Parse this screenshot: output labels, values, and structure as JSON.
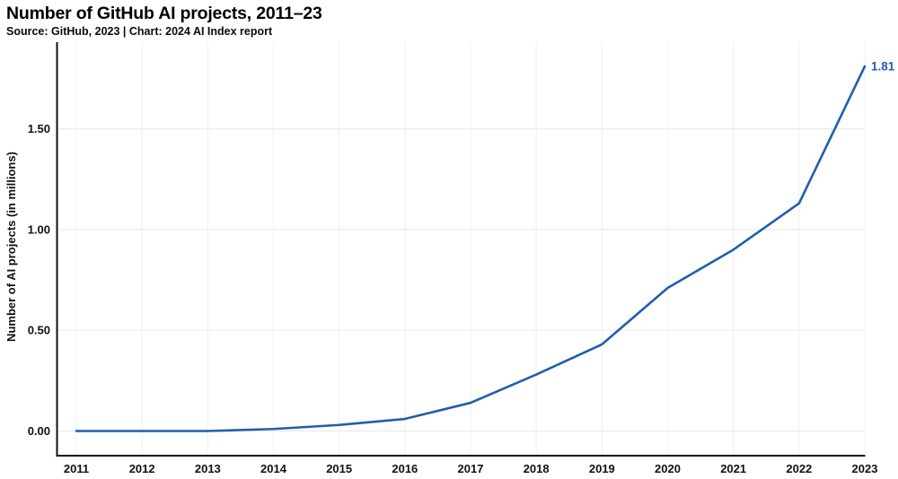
{
  "header": {
    "title": "Number of GitHub AI projects, 2011–23",
    "subtitle": "Source: GitHub, 2023 | Chart: 2024 AI Index report"
  },
  "chart_data": {
    "type": "line",
    "title": "Number of GitHub AI projects, 2011–23",
    "subtitle": "Source: GitHub, 2023 | Chart: 2024 AI Index report",
    "xlabel": "",
    "ylabel": "Number of AI projects (in millions)",
    "categories": [
      2011,
      2012,
      2013,
      2014,
      2015,
      2016,
      2017,
      2018,
      2019,
      2020,
      2021,
      2022,
      2023
    ],
    "series": [
      {
        "name": "Number of AI projects (in millions)",
        "values": [
          0.0,
          0.0,
          0.0,
          0.01,
          0.03,
          0.06,
          0.14,
          0.28,
          0.43,
          0.71,
          0.9,
          1.13,
          1.81
        ]
      }
    ],
    "end_label": "1.81",
    "yticks": {
      "values": [
        0.0,
        0.5,
        1.0,
        1.5
      ],
      "labels": [
        "0.00",
        "0.50",
        "1.00",
        "1.50"
      ]
    },
    "xtick_labels": [
      "2011",
      "2012",
      "2013",
      "2014",
      "2015",
      "2016",
      "2017",
      "2018",
      "2019",
      "2020",
      "2021",
      "2022",
      "2023"
    ],
    "ylim": [
      0,
      1.93
    ],
    "grid": "on",
    "legend": "none",
    "colors": {
      "line": "#1f5fad",
      "end_label": "#2062ae",
      "axis": "#111111",
      "h_gridline": "#ebebeb",
      "v_gridline": "#f2f2f2",
      "text": "#111111",
      "background": "#ffffff"
    }
  }
}
